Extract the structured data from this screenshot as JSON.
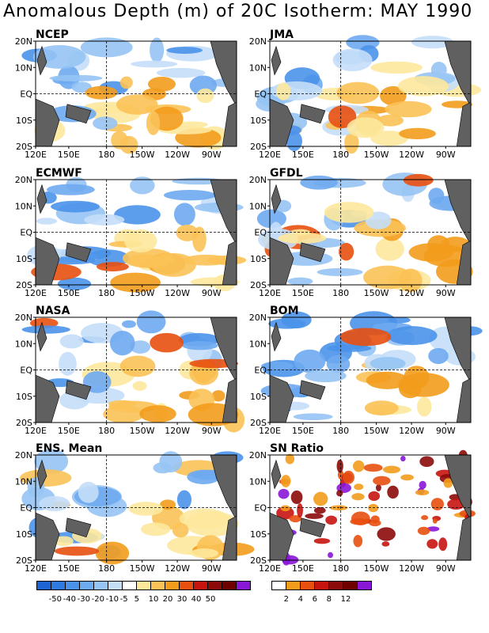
{
  "title": "Anomalous Depth (m) of 20C Isotherm: MAY 1990",
  "axes": {
    "lon_labels": [
      "120E",
      "150E",
      "180",
      "150W",
      "120W",
      "90W"
    ],
    "lat_labels": [
      "20N",
      "10N",
      "EQ",
      "10S",
      "20S"
    ]
  },
  "panels": [
    {
      "name": "NCEP"
    },
    {
      "name": "JMA"
    },
    {
      "name": "ECMWF"
    },
    {
      "name": "GFDL"
    },
    {
      "name": "NASA"
    },
    {
      "name": "BOM"
    },
    {
      "name": "ENS. Mean"
    },
    {
      "name": "SN Ratio"
    }
  ],
  "colorbar_anomaly": {
    "labels": [
      "-50",
      "-40",
      "-30",
      "-20",
      "-10",
      "-5",
      "5",
      "10",
      "20",
      "30",
      "40",
      "50"
    ],
    "colors": [
      "#1e64d2",
      "#2f7ae0",
      "#4a92ea",
      "#6eaaf0",
      "#96c4f4",
      "#c4def8",
      "#ffffff",
      "#fde89c",
      "#fbc257",
      "#f39c1c",
      "#e8500f",
      "#c8140f",
      "#8c0a0a",
      "#6e0000",
      "#8a16d8"
    ]
  },
  "colorbar_sn": {
    "labels": [
      "2",
      "4",
      "6",
      "8",
      "12"
    ],
    "colors": [
      "#ffffff",
      "#f39c1c",
      "#e8500f",
      "#c8140f",
      "#8c0a0a",
      "#6e0000",
      "#8a16d8"
    ]
  }
}
